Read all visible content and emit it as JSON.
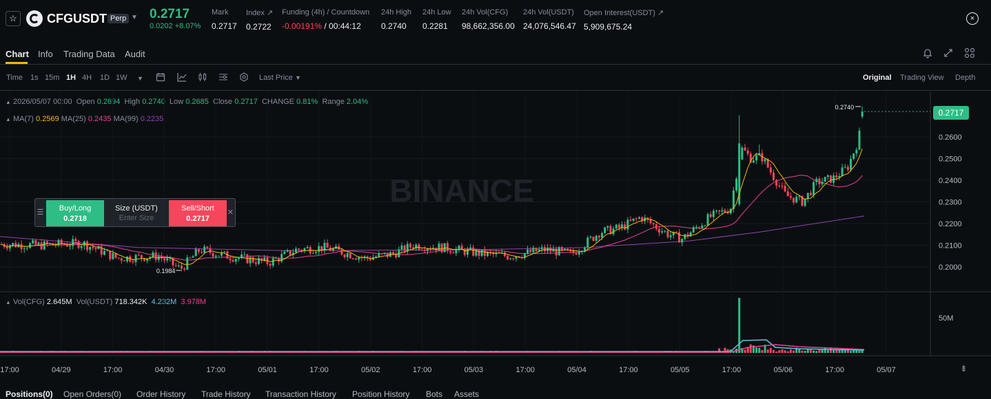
{
  "header": {
    "symbol": "CFGUSDT",
    "badge": "Perp",
    "last_price": "0.2717",
    "change_abs": "0.0202",
    "change_pct": "+8.07%",
    "stats": [
      {
        "label": "Mark",
        "value": "0.2717"
      },
      {
        "label": "Index ↗",
        "value": "0.2722"
      },
      {
        "label": "Funding (4h) / Countdown",
        "value_a": "-0.00191%",
        "value_b": " / 00:44:12"
      },
      {
        "label": "24h High",
        "value": "0.2740"
      },
      {
        "label": "24h Low",
        "value": "0.2281"
      },
      {
        "label": "24h Vol(CFG)",
        "value": "98,662,356.00"
      },
      {
        "label": "24h Vol(USDT)",
        "value": "24,076,546.47"
      },
      {
        "label": "Open Interest(USDT) ↗",
        "value": "5,909,675.24"
      }
    ]
  },
  "tabs": [
    "Chart",
    "Info",
    "Trading Data",
    "Audit"
  ],
  "toolbar": {
    "time_label": "Time",
    "intervals": [
      "1s",
      "15m",
      "1H",
      "4H",
      "1D",
      "1W"
    ],
    "active_interval": "1H",
    "price_type": "Last Price",
    "views": [
      "Original",
      "Trading View",
      "Depth"
    ],
    "active_view": "Original"
  },
  "legend": {
    "date": "2026/05/07 00:00",
    "open_label": "Open",
    "open": "0.2694",
    "high_label": "High",
    "high": "0.2740",
    "low_label": "Low",
    "low": "0.2685",
    "close_label": "Close",
    "close": "0.2717",
    "change_label": "CHANGE",
    "change": "0.81%",
    "range_label": "Range",
    "range": "2.04%",
    "ma7_label": "MA(7)",
    "ma7": "0.2569",
    "ma25_label": "MA(25)",
    "ma25": "0.2435",
    "ma99_label": "MA(99)",
    "ma99": "0.2235",
    "vol_cfg_label": "Vol(CFG)",
    "vol_cfg": "2.645M",
    "vol_usdt_label": "Vol(USDT)",
    "vol_usdt": "718.342K",
    "vol_a": "4.232M",
    "vol_b": "3.978M"
  },
  "order_widget": {
    "buy_label": "Buy/Long",
    "buy_price": "0.2718",
    "size_label": "Size (USDT)",
    "size_placeholder": "Enter Size",
    "sell_label": "Sell/Short",
    "sell_price": "0.2717"
  },
  "watermark": "BINANCE",
  "colors": {
    "up": "#2ebd85",
    "down": "#f6465d",
    "ma7": "#f0b90b",
    "ma25": "#e84393",
    "ma99": "#8e44ad",
    "accent": "#f0b90b"
  },
  "chart_data": {
    "type": "candlestick",
    "y_ticks": [
      "0.2600",
      "0.2500",
      "0.2400",
      "0.2300",
      "0.2200",
      "0.2100",
      "0.2000"
    ],
    "x_ticks": [
      "17:00",
      "04/29",
      "17:00",
      "04/30",
      "17:00",
      "05/01",
      "17:00",
      "05/02",
      "17:00",
      "05/03",
      "17:00",
      "05/04",
      "17:00",
      "05/05",
      "17:00",
      "05/06",
      "17:00",
      "05/07"
    ],
    "current_price": "0.2717",
    "high_marker": "0.2740",
    "low_marker": "0.1984",
    "volume_tick": "50M",
    "ylim": [
      0.195,
      0.278
    ]
  },
  "bottom_tabs": [
    "Positions(0)",
    "Open Orders(0)",
    "Order History",
    "Trade History",
    "Transaction History",
    "Position History",
    "Bots",
    "Assets"
  ]
}
